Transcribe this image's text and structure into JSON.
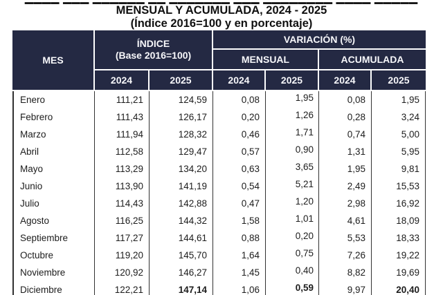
{
  "page": {
    "clipped_top_text": "▁▁▁▁ ▁▁▁ ▁▁▁▁▁▁ ▁▁ ▁▁▁▁▁▁▁ ▁▁▁ ▁▁▁▁▁▁▁▁ ▁▁▁▁ ▁▁▁▁▁",
    "title_line1": "MENSUAL Y ACUMULADA, 2024 - 2025",
    "title_line2": "(Índice 2016=100 y en porcentaje)"
  },
  "colors": {
    "header_bg": "#242943",
    "header_text": "#f7f7fa",
    "body_text": "#1c1c1c",
    "grid_line": "#303030"
  },
  "table": {
    "headers": {
      "mes": "MES",
      "indice_line1": "ÍNDICE",
      "indice_line2": "(Base 2016=100)",
      "variacion": "VARIACIÓN (%)",
      "mensual": "MENSUAL",
      "acumulada": "ACUMULADA",
      "year_2024": "2024",
      "year_2025": "2025"
    },
    "rows": [
      {
        "mes": "Enero",
        "indice_2024": "111,21",
        "indice_2025": "124,59",
        "mensual_2024": "0,08",
        "mensual_2025": "1,95",
        "acumulada_2024": "0,08",
        "acumulada_2025": "1,95",
        "bold_fields": []
      },
      {
        "mes": "Febrero",
        "indice_2024": "111,43",
        "indice_2025": "126,17",
        "mensual_2024": "0,20",
        "mensual_2025": "1,26",
        "acumulada_2024": "0,28",
        "acumulada_2025": "3,24",
        "bold_fields": []
      },
      {
        "mes": "Marzo",
        "indice_2024": "111,94",
        "indice_2025": "128,32",
        "mensual_2024": "0,46",
        "mensual_2025": "1,71",
        "acumulada_2024": "0,74",
        "acumulada_2025": "5,00",
        "bold_fields": []
      },
      {
        "mes": "Abril",
        "indice_2024": "112,58",
        "indice_2025": "129,47",
        "mensual_2024": "0,57",
        "mensual_2025": "0,90",
        "acumulada_2024": "1,31",
        "acumulada_2025": "5,95",
        "bold_fields": []
      },
      {
        "mes": "Mayo",
        "indice_2024": "113,29",
        "indice_2025": "134,20",
        "mensual_2024": "0,63",
        "mensual_2025": "3,65",
        "acumulada_2024": "1,95",
        "acumulada_2025": "9,81",
        "bold_fields": []
      },
      {
        "mes": "Junio",
        "indice_2024": "113,90",
        "indice_2025": "141,19",
        "mensual_2024": "0,54",
        "mensual_2025": "5,21",
        "acumulada_2024": "2,49",
        "acumulada_2025": "15,53",
        "bold_fields": []
      },
      {
        "mes": "Julio",
        "indice_2024": "114,43",
        "indice_2025": "142,88",
        "mensual_2024": "0,47",
        "mensual_2025": "1,20",
        "acumulada_2024": "2,98",
        "acumulada_2025": "16,92",
        "bold_fields": []
      },
      {
        "mes": "Agosto",
        "indice_2024": "116,25",
        "indice_2025": "144,32",
        "mensual_2024": "1,58",
        "mensual_2025": "1,01",
        "acumulada_2024": "4,61",
        "acumulada_2025": "18,09",
        "bold_fields": []
      },
      {
        "mes": "Septiembre",
        "indice_2024": "117,27",
        "indice_2025": "144,61",
        "mensual_2024": "0,88",
        "mensual_2025": "0,20",
        "acumulada_2024": "5,53",
        "acumulada_2025": "18,33",
        "bold_fields": []
      },
      {
        "mes": "Octubre",
        "indice_2024": "119,20",
        "indice_2025": "145,70",
        "mensual_2024": "1,64",
        "mensual_2025": "0,75",
        "acumulada_2024": "7,26",
        "acumulada_2025": "19,22",
        "bold_fields": []
      },
      {
        "mes": "Noviembre",
        "indice_2024": "120,92",
        "indice_2025": "146,27",
        "mensual_2024": "1,45",
        "mensual_2025": "0,40",
        "acumulada_2024": "8,82",
        "acumulada_2025": "19,69",
        "bold_fields": []
      },
      {
        "mes": "Diciembre",
        "indice_2024": "122,21",
        "indice_2025": "147,14",
        "mensual_2024": "1,06",
        "mensual_2025": "0,59",
        "acumulada_2024": "9,97",
        "acumulada_2025": "20,40",
        "bold_fields": [
          "indice_2025",
          "mensual_2025",
          "acumulada_2025"
        ]
      }
    ]
  },
  "chart_data": {
    "type": "table",
    "title": "MENSUAL Y ACUMULADA, 2024 - 2025 (Índice 2016=100 y en porcentaje)",
    "columns": [
      "MES",
      "ÍNDICE (Base 2016=100) 2024",
      "ÍNDICE (Base 2016=100) 2025",
      "VARIACIÓN (%) MENSUAL 2024",
      "VARIACIÓN (%) MENSUAL 2025",
      "VARIACIÓN (%) ACUMULADA 2024",
      "VARIACIÓN (%) ACUMULADA 2025"
    ],
    "rows": [
      [
        "Enero",
        111.21,
        124.59,
        0.08,
        1.95,
        0.08,
        1.95
      ],
      [
        "Febrero",
        111.43,
        126.17,
        0.2,
        1.26,
        0.28,
        3.24
      ],
      [
        "Marzo",
        111.94,
        128.32,
        0.46,
        1.71,
        0.74,
        5.0
      ],
      [
        "Abril",
        112.58,
        129.47,
        0.57,
        0.9,
        1.31,
        5.95
      ],
      [
        "Mayo",
        113.29,
        134.2,
        0.63,
        3.65,
        1.95,
        9.81
      ],
      [
        "Junio",
        113.9,
        141.19,
        0.54,
        5.21,
        2.49,
        15.53
      ],
      [
        "Julio",
        114.43,
        142.88,
        0.47,
        1.2,
        2.98,
        16.92
      ],
      [
        "Agosto",
        116.25,
        144.32,
        1.58,
        1.01,
        4.61,
        18.09
      ],
      [
        "Septiembre",
        117.27,
        144.61,
        0.88,
        0.2,
        5.53,
        18.33
      ],
      [
        "Octubre",
        119.2,
        145.7,
        1.64,
        0.75,
        7.26,
        19.22
      ],
      [
        "Noviembre",
        120.92,
        146.27,
        1.45,
        0.4,
        8.82,
        19.69
      ],
      [
        "Diciembre",
        122.21,
        147.14,
        1.06,
        0.59,
        9.97,
        20.4
      ]
    ]
  }
}
